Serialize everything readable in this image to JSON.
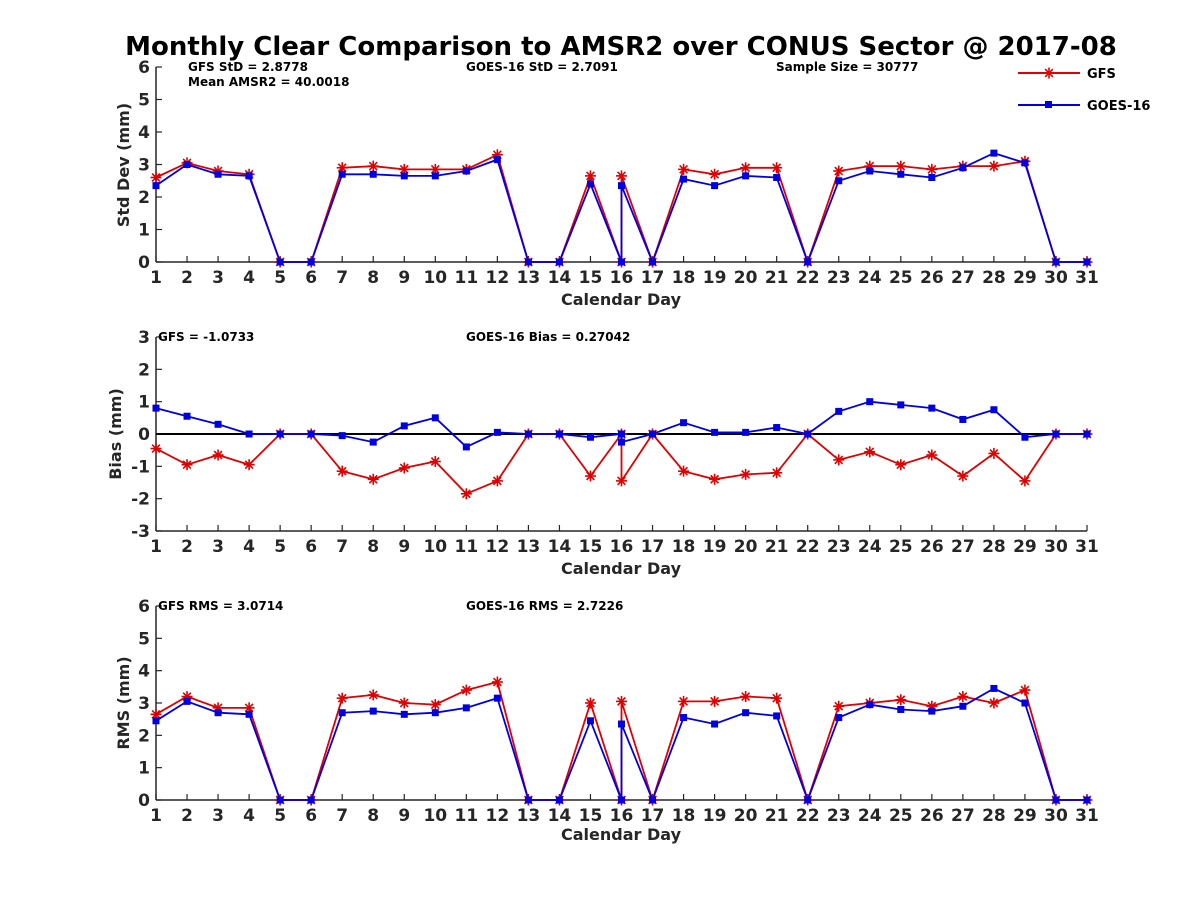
{
  "title": "Monthly Clear Comparison to AMSR2 over CONUS Sector @ 2017-08",
  "legend": {
    "placement": "top-right",
    "entries": [
      {
        "name": "GFS",
        "color": "#e00000",
        "marker": "asterisk"
      },
      {
        "name": "GOES-16",
        "color": "#0000e0",
        "marker": "square"
      }
    ]
  },
  "chart_data": [
    {
      "type": "line",
      "ylabel": "Std Dev (mm)",
      "xlabel": "Calendar Day",
      "xlim": [
        1,
        31
      ],
      "ylim": [
        0,
        6
      ],
      "yticks": [
        0,
        1,
        2,
        3,
        4,
        5,
        6
      ],
      "x": [
        1,
        2,
        3,
        4,
        5,
        6,
        7,
        8,
        9,
        10,
        11,
        12,
        13,
        14,
        15,
        16,
        16,
        17,
        18,
        19,
        20,
        21,
        22,
        23,
        24,
        25,
        26,
        27,
        28,
        29,
        30,
        31
      ],
      "annotations": [
        {
          "text": "GFS StD = 2.8778"
        },
        {
          "text": "Mean AMSR2 = 40.0018"
        },
        {
          "text": "GOES-16 StD = 2.7091"
        },
        {
          "text": "Sample Size = 30777"
        }
      ],
      "zero_line": false,
      "series": [
        {
          "name": "GFS",
          "values": [
            2.6,
            3.05,
            2.8,
            2.7,
            0,
            0,
            2.9,
            2.95,
            2.85,
            2.85,
            2.85,
            3.3,
            0,
            0,
            2.65,
            0,
            2.65,
            0,
            2.85,
            2.7,
            2.9,
            2.9,
            0,
            2.8,
            2.95,
            2.95,
            2.85,
            2.95,
            2.95,
            3.1,
            0,
            0
          ]
        },
        {
          "name": "GOES-16",
          "values": [
            2.35,
            3.0,
            2.7,
            2.65,
            0,
            0,
            2.7,
            2.7,
            2.65,
            2.65,
            2.8,
            3.15,
            0,
            0,
            2.4,
            0,
            2.35,
            0,
            2.55,
            2.35,
            2.65,
            2.6,
            0,
            2.5,
            2.8,
            2.7,
            2.6,
            2.9,
            3.35,
            3.05,
            0,
            0
          ]
        }
      ]
    },
    {
      "type": "line",
      "ylabel": "Bias (mm)",
      "xlabel": "Calendar Day",
      "xlim": [
        1,
        31
      ],
      "ylim": [
        -3,
        3
      ],
      "yticks": [
        -3,
        -2,
        -1,
        0,
        1,
        2,
        3
      ],
      "x": [
        1,
        2,
        3,
        4,
        5,
        6,
        7,
        8,
        9,
        10,
        11,
        12,
        13,
        14,
        15,
        16,
        16,
        17,
        18,
        19,
        20,
        21,
        22,
        23,
        24,
        25,
        26,
        27,
        28,
        29,
        30,
        31
      ],
      "annotations": [
        {
          "text": "GFS = -1.0733"
        },
        {
          "text": "GOES-16 Bias = 0.27042"
        }
      ],
      "zero_line": true,
      "series": [
        {
          "name": "GFS",
          "values": [
            -0.45,
            -0.95,
            -0.65,
            -0.95,
            0,
            0,
            -1.15,
            -1.4,
            -1.05,
            -0.85,
            -1.85,
            -1.45,
            0,
            0,
            -1.3,
            0,
            -1.45,
            0,
            -1.15,
            -1.4,
            -1.25,
            -1.2,
            0,
            -0.8,
            -0.55,
            -0.95,
            -0.65,
            -1.3,
            -0.6,
            -1.45,
            0,
            0
          ]
        },
        {
          "name": "GOES-16",
          "values": [
            0.8,
            0.55,
            0.3,
            0.0,
            0,
            0,
            -0.05,
            -0.25,
            0.25,
            0.5,
            -0.4,
            0.05,
            0,
            0,
            -0.1,
            0,
            -0.25,
            0,
            0.35,
            0.05,
            0.05,
            0.2,
            0,
            0.7,
            1.0,
            0.9,
            0.8,
            0.45,
            0.75,
            -0.1,
            0,
            0
          ]
        }
      ]
    },
    {
      "type": "line",
      "ylabel": "RMS (mm)",
      "xlabel": "Calendar Day",
      "xlim": [
        1,
        31
      ],
      "ylim": [
        0,
        6
      ],
      "yticks": [
        0,
        1,
        2,
        3,
        4,
        5,
        6
      ],
      "x": [
        1,
        2,
        3,
        4,
        5,
        6,
        7,
        8,
        9,
        10,
        11,
        12,
        13,
        14,
        15,
        16,
        16,
        17,
        18,
        19,
        20,
        21,
        22,
        23,
        24,
        25,
        26,
        27,
        28,
        29,
        30,
        31
      ],
      "annotations": [
        {
          "text": "GFS RMS = 3.0714"
        },
        {
          "text": "GOES-16 RMS = 2.7226"
        }
      ],
      "zero_line": false,
      "series": [
        {
          "name": "GFS",
          "values": [
            2.65,
            3.2,
            2.85,
            2.85,
            0,
            0,
            3.15,
            3.25,
            3.0,
            2.95,
            3.4,
            3.65,
            0,
            0,
            3.0,
            0,
            3.05,
            0,
            3.05,
            3.05,
            3.2,
            3.15,
            0,
            2.9,
            3.0,
            3.1,
            2.9,
            3.2,
            3.0,
            3.4,
            0,
            0
          ]
        },
        {
          "name": "GOES-16",
          "values": [
            2.45,
            3.05,
            2.7,
            2.65,
            0,
            0,
            2.7,
            2.75,
            2.65,
            2.7,
            2.85,
            3.15,
            0,
            0,
            2.45,
            0,
            2.35,
            0,
            2.55,
            2.35,
            2.7,
            2.6,
            0,
            2.55,
            2.95,
            2.8,
            2.75,
            2.9,
            3.45,
            3.0,
            0,
            0
          ]
        }
      ]
    }
  ]
}
